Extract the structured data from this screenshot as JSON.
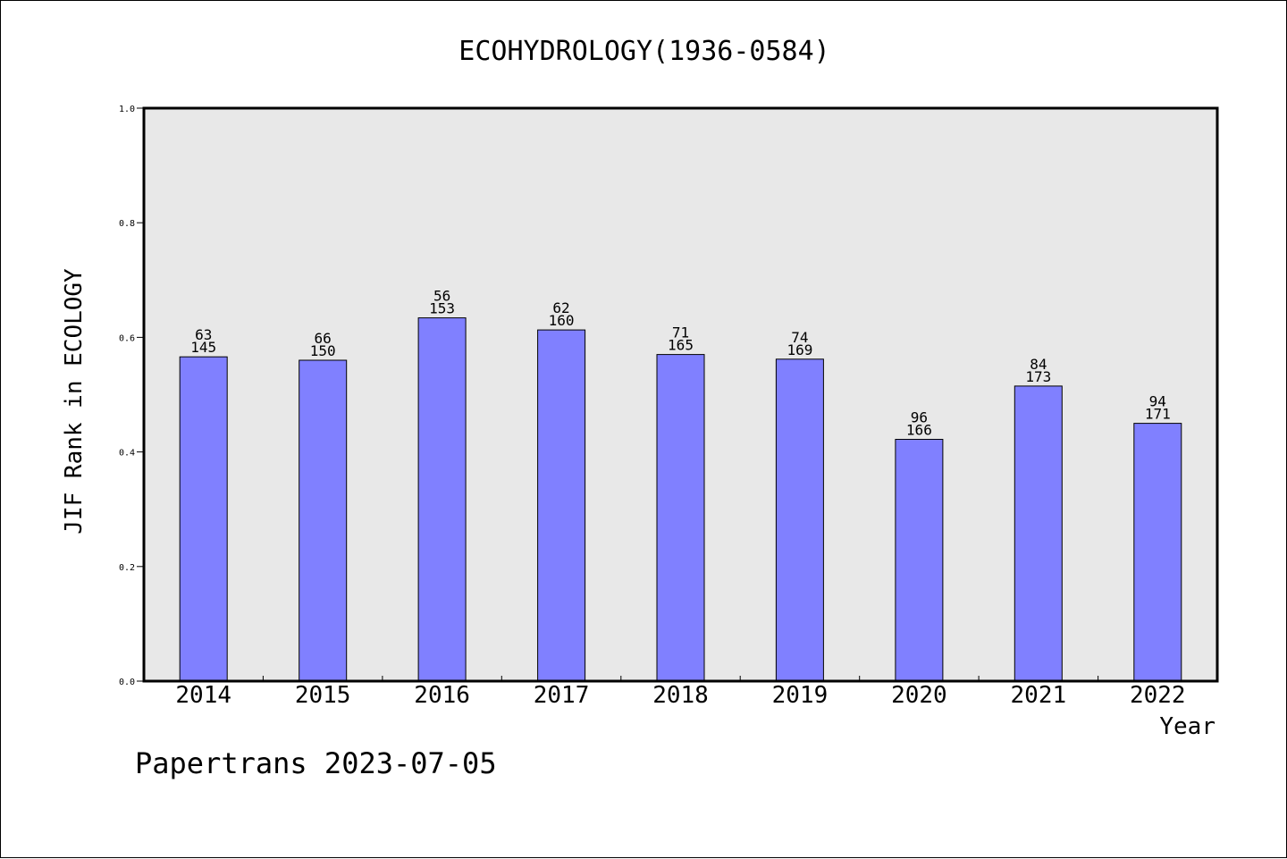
{
  "chart_data": {
    "type": "bar",
    "title": "ECOHYDROLOGY(1936-0584)",
    "xlabel": "Year",
    "ylabel": "JIF Rank in ECOLOGY",
    "ylim": [
      0,
      1.0
    ],
    "yticks": [
      "0.0",
      "0.2",
      "0.4",
      "0.6",
      "0.8",
      "1.0"
    ],
    "grid": false,
    "categories": [
      "2014",
      "2015",
      "2016",
      "2017",
      "2018",
      "2019",
      "2020",
      "2021",
      "2022"
    ],
    "values": [
      0.566,
      0.56,
      0.634,
      0.613,
      0.57,
      0.562,
      0.422,
      0.515,
      0.45
    ],
    "labels_rank": [
      "63",
      "66",
      "56",
      "62",
      "71",
      "74",
      "96",
      "84",
      "94"
    ],
    "labels_total": [
      "145",
      "150",
      "153",
      "160",
      "165",
      "169",
      "166",
      "173",
      "171"
    ],
    "bar_color": "#8080ff",
    "plot_background": "#e8e8e8",
    "footer": "Papertrans 2023-07-05"
  }
}
